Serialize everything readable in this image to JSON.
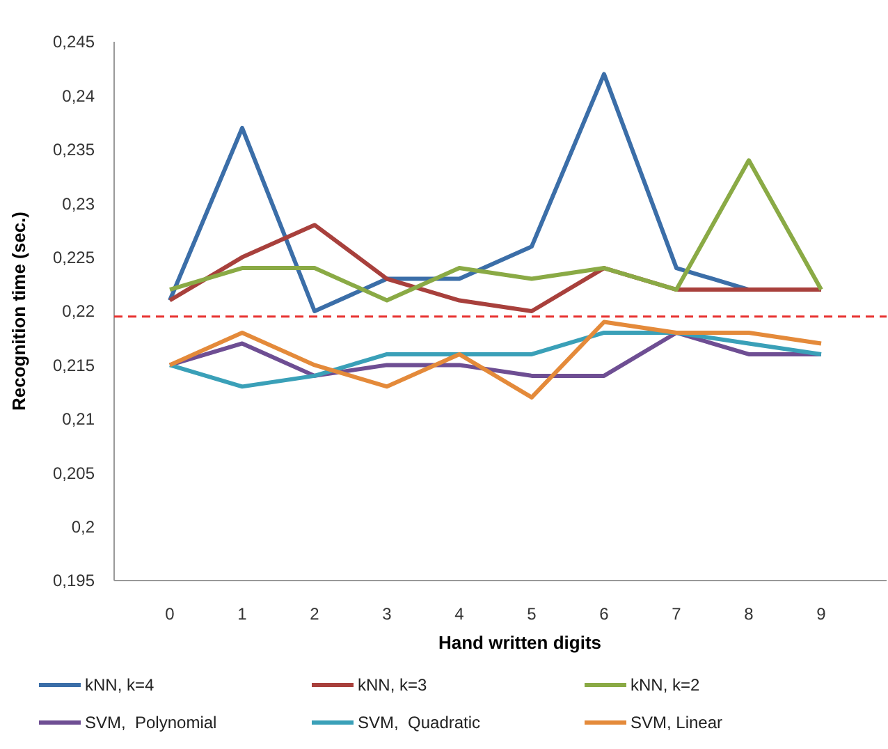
{
  "chart_data": {
    "type": "line",
    "xlabel": "Hand written digits",
    "ylabel": "Recognition time (sec.)",
    "categories": [
      "0",
      "1",
      "2",
      "3",
      "4",
      "5",
      "6",
      "7",
      "8",
      "9"
    ],
    "ylim": [
      0.195,
      0.245
    ],
    "yticks": [
      {
        "value": 0.195,
        "label": "0,195"
      },
      {
        "value": 0.2,
        "label": "0,2"
      },
      {
        "value": 0.205,
        "label": "0,205"
      },
      {
        "value": 0.21,
        "label": "0,21"
      },
      {
        "value": 0.215,
        "label": "0,215"
      },
      {
        "value": 0.22,
        "label": "0,22"
      },
      {
        "value": 0.225,
        "label": "0,225"
      },
      {
        "value": 0.23,
        "label": "0,23"
      },
      {
        "value": 0.235,
        "label": "0,235"
      },
      {
        "value": 0.24,
        "label": "0,24"
      },
      {
        "value": 0.245,
        "label": "0,245"
      }
    ],
    "grid": false,
    "legend": "bottom",
    "marker": "none",
    "line_style": "solid",
    "ref_lines": [
      {
        "axis": "y",
        "value": 0.2195,
        "color": "#e8312f",
        "line_style": "dashed"
      }
    ],
    "series": [
      {
        "name": "kNN, k=4",
        "color": "#3b6ea8",
        "values": [
          0.221,
          0.237,
          0.22,
          0.223,
          0.223,
          0.226,
          0.242,
          0.224,
          0.222,
          0.222
        ]
      },
      {
        "name": "kNN, k=3",
        "color": "#a8403c",
        "values": [
          0.221,
          0.225,
          0.228,
          0.223,
          0.221,
          0.22,
          0.224,
          0.222,
          0.222,
          0.222
        ]
      },
      {
        "name": "kNN, k=2",
        "color": "#8aaa45",
        "values": [
          0.222,
          0.224,
          0.224,
          0.221,
          0.224,
          0.223,
          0.224,
          0.222,
          0.234,
          0.222
        ]
      },
      {
        "name": "SVM,  Polynomial",
        "color": "#6e4e93",
        "values": [
          0.215,
          0.217,
          0.214,
          0.215,
          0.215,
          0.214,
          0.214,
          0.218,
          0.216,
          0.216
        ]
      },
      {
        "name": "SVM,  Quadratic",
        "color": "#3aa0b8",
        "values": [
          0.215,
          0.213,
          0.214,
          0.216,
          0.216,
          0.216,
          0.218,
          0.218,
          0.217,
          0.216
        ]
      },
      {
        "name": "SVM, Linear",
        "color": "#e48a3a",
        "values": [
          0.215,
          0.218,
          0.215,
          0.213,
          0.216,
          0.212,
          0.219,
          0.218,
          0.218,
          0.217
        ]
      }
    ]
  }
}
